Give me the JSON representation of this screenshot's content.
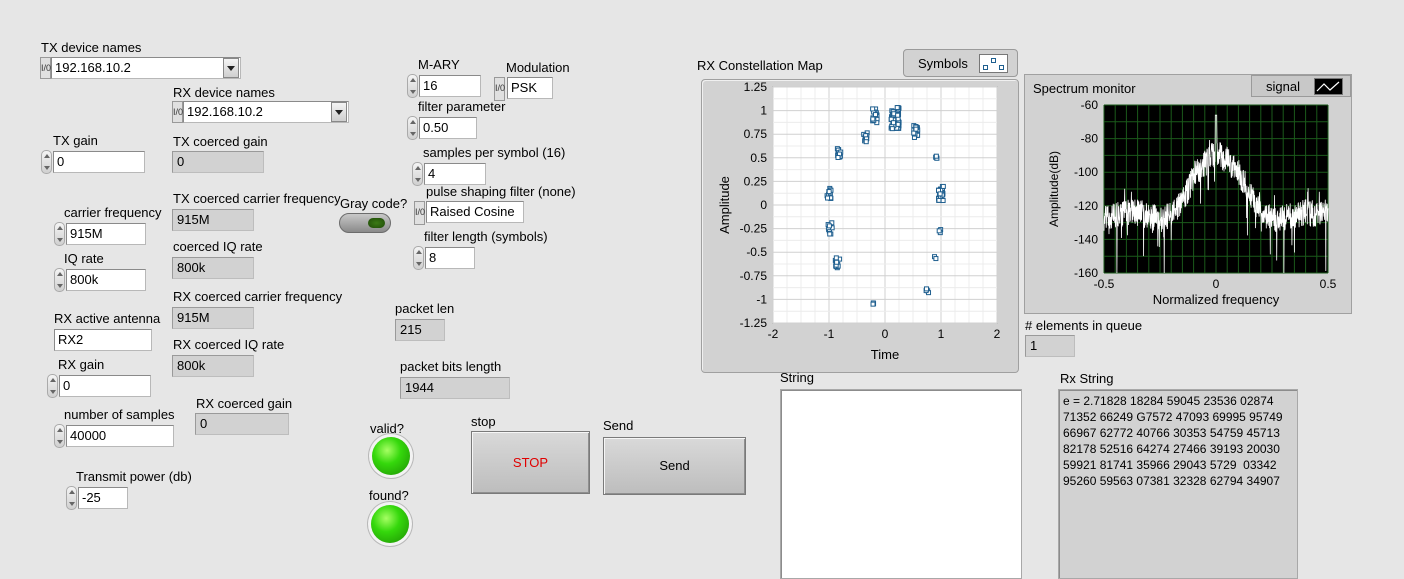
{
  "tx_device_names": {
    "label": "TX device names",
    "value": "192.168.10.2"
  },
  "rx_device_names": {
    "label": "RX device names",
    "value": "192.168.10.2"
  },
  "tx_gain": {
    "label": "TX gain",
    "value": "0"
  },
  "tx_coerced_gain": {
    "label": "TX coerced gain",
    "value": "0"
  },
  "tx_coerced_carrier": {
    "label": "TX coerced carrier frequency",
    "value": "915M"
  },
  "carrier_frequency": {
    "label": "carrier frequency",
    "value": "915M"
  },
  "coerced_iq_rate": {
    "label": "coerced IQ rate",
    "value": "800k"
  },
  "iq_rate": {
    "label": "IQ rate",
    "value": "800k"
  },
  "rx_coerced_carrier": {
    "label": "RX coerced carrier frequency",
    "value": "915M"
  },
  "rx_active_antenna": {
    "label": "RX active antenna",
    "value": "RX2"
  },
  "rx_coerced_iq": {
    "label": "RX coerced IQ rate",
    "value": "800k"
  },
  "rx_gain": {
    "label": "RX gain",
    "value": "0"
  },
  "number_of_samples": {
    "label": "number of samples",
    "value": "40000"
  },
  "rx_coerced_gain": {
    "label": "RX coerced gain",
    "value": "0"
  },
  "transmit_power": {
    "label": "Transmit power (db)",
    "value": "-25"
  },
  "gray_code": {
    "label": "Gray code?"
  },
  "m_ary": {
    "label": "M-ARY",
    "value": "16"
  },
  "modulation": {
    "label": "Modulation",
    "value": "PSK"
  },
  "filter_parameter": {
    "label": "filter parameter",
    "value": "0.50"
  },
  "samples_per_symbol": {
    "label": "samples per symbol (16)",
    "value": "4"
  },
  "pulse_shaping": {
    "label": "pulse shaping filter (none)",
    "value": "Raised Cosine"
  },
  "filter_length": {
    "label": "filter length (symbols)",
    "value": "8"
  },
  "packet_len": {
    "label": "packet len",
    "value": "215"
  },
  "packet_bits_length": {
    "label": "packet bits length",
    "value": "1944"
  },
  "valid": {
    "label": "valid?"
  },
  "found": {
    "label": "found?"
  },
  "stop_button": {
    "label": "stop",
    "text": "STOP"
  },
  "send_button": {
    "label": "Send",
    "text": "Send"
  },
  "ring_glyph": "I/0",
  "constellation": {
    "label": "RX Constellation Map",
    "legend": "Symbols",
    "xlabel": "Time",
    "ylabel": "Amplitude",
    "xticks": [
      "-2",
      "-1",
      "0",
      "1",
      "2"
    ],
    "yticks": [
      "1.25",
      "1",
      "0.75",
      "0.5",
      "0.25",
      "0",
      "-0.25",
      "-0.5",
      "-0.75",
      "-1",
      "-1.25"
    ]
  },
  "spectrum": {
    "label": "Spectrum monitor",
    "legend": "signal",
    "xlabel": "Normalized frequency",
    "ylabel": "Amplitude(dB)",
    "xticks": [
      "-0.5",
      "0",
      "0.5"
    ],
    "yticks": [
      "-60",
      "-80",
      "-100",
      "-120",
      "-140",
      "-160"
    ]
  },
  "elements_in_queue": {
    "label": "# elements in queue",
    "value": "1"
  },
  "string": {
    "label": "String"
  },
  "rx_string": {
    "label": "Rx String",
    "lines": [
      "e = 2.71828 18284 59045 23536 02874",
      "71352 66249 G7572 47093 69995 95749",
      "66967 62772 40766 30353 54759 45713",
      "82178 52516 64274 27466 39193 20030",
      "59921 81741 35966 29043 5729  03342",
      "95260 59563 07381 32328 62794 34907"
    ]
  },
  "chart_data": [
    {
      "type": "scatter",
      "title": "RX Constellation Map",
      "xlabel": "Time",
      "ylabel": "Amplitude",
      "xlim": [
        -2,
        2
      ],
      "ylim": [
        -1.25,
        1.25
      ],
      "legend": "Symbols",
      "clusters": [
        {
          "x": 0.18,
          "y": 0.92,
          "spread": 0.09,
          "n": 70
        },
        {
          "x": -0.18,
          "y": 0.95,
          "spread": 0.06,
          "n": 14
        },
        {
          "x": -0.35,
          "y": 0.72,
          "spread": 0.04,
          "n": 12
        },
        {
          "x": 0.55,
          "y": 0.78,
          "spread": 0.05,
          "n": 22
        },
        {
          "x": -0.82,
          "y": 0.55,
          "spread": 0.04,
          "n": 14
        },
        {
          "x": 0.92,
          "y": 0.52,
          "spread": 0.02,
          "n": 4
        },
        {
          "x": 1.0,
          "y": 0.12,
          "spread": 0.06,
          "n": 24
        },
        {
          "x": -1.0,
          "y": 0.12,
          "spread": 0.05,
          "n": 12
        },
        {
          "x": -0.98,
          "y": -0.25,
          "spread": 0.05,
          "n": 12
        },
        {
          "x": 0.98,
          "y": -0.28,
          "spread": 0.02,
          "n": 3
        },
        {
          "x": -0.85,
          "y": -0.62,
          "spread": 0.05,
          "n": 14
        },
        {
          "x": 0.9,
          "y": -0.55,
          "spread": 0.02,
          "n": 2
        },
        {
          "x": 0.75,
          "y": -0.88,
          "spread": 0.04,
          "n": 5
        },
        {
          "x": -0.22,
          "y": -1.05,
          "spread": 0.02,
          "n": 3
        }
      ]
    },
    {
      "type": "line",
      "title": "Spectrum monitor",
      "xlabel": "Normalized frequency",
      "ylabel": "Amplitude(dB)",
      "xlim": [
        -0.5,
        0.5
      ],
      "ylim": [
        -160,
        -60
      ],
      "series": [
        {
          "name": "signal",
          "x": [
            -0.5,
            -0.45,
            -0.4,
            -0.35,
            -0.3,
            -0.25,
            -0.2,
            -0.15,
            -0.1,
            -0.05,
            0,
            0.05,
            0.1,
            0.15,
            0.2,
            0.25,
            0.3,
            0.35,
            0.4,
            0.45,
            0.5
          ],
          "values": [
            -127,
            -125,
            -124,
            -124,
            -126,
            -128,
            -126,
            -118,
            -103,
            -95,
            -88,
            -93,
            -100,
            -112,
            -124,
            -128,
            -127,
            -126,
            -124,
            -125,
            -126
          ]
        }
      ]
    }
  ]
}
